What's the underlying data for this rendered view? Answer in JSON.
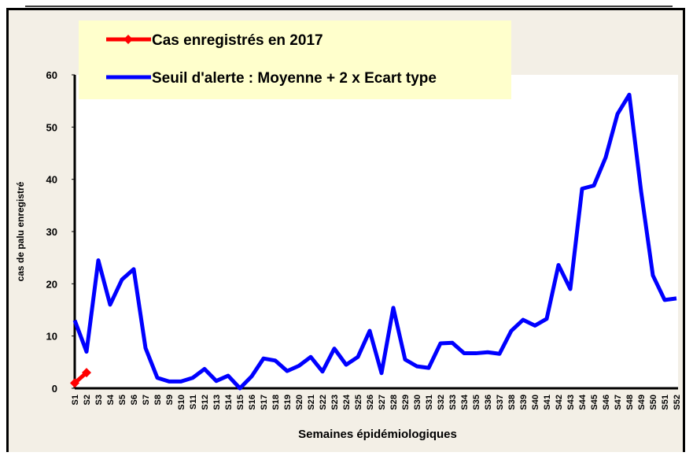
{
  "chart_data": {
    "type": "line",
    "x_label": "Semaines épidémiologiques",
    "y_label": "cas de palu enregistré",
    "categories": [
      "S1",
      "S2",
      "S3",
      "S4",
      "S5",
      "S6",
      "S7",
      "S8",
      "S9",
      "S10",
      "S11",
      "S12",
      "S13",
      "S14",
      "S15",
      "S16",
      "S17",
      "S18",
      "S19",
      "S20",
      "S21",
      "S22",
      "S23",
      "S24",
      "S25",
      "S26",
      "S27",
      "S28",
      "S29",
      "S30",
      "S31",
      "S32",
      "S33",
      "S34",
      "S35",
      "S36",
      "S37",
      "S38",
      "S39",
      "S40",
      "S41",
      "S42",
      "S43",
      "S44",
      "S45",
      "S46",
      "S47",
      "S48",
      "S49",
      "S50",
      "S51",
      "S52"
    ],
    "series": [
      {
        "name": "Cas enregistrés en 2017",
        "color": "#ff0000",
        "marker": "diamond",
        "values": [
          1,
          3,
          null,
          null,
          null,
          null,
          null,
          null,
          null,
          null,
          null,
          null,
          null,
          null,
          null,
          null,
          null,
          null,
          null,
          null,
          null,
          null,
          null,
          null,
          null,
          null,
          null,
          null,
          null,
          null,
          null,
          null,
          null,
          null,
          null,
          null,
          null,
          null,
          null,
          null,
          null,
          null,
          null,
          null,
          null,
          null,
          null,
          null,
          null,
          null,
          null,
          null
        ]
      },
      {
        "name": "Seuil d'alerte : Moyenne + 2 x Ecart type",
        "color": "#0000ff",
        "values": [
          13,
          7,
          24.5,
          16,
          20.8,
          22.8,
          7.7,
          2,
          1.3,
          1.3,
          2,
          3.7,
          1.4,
          2.4,
          0,
          2.3,
          5.7,
          5.3,
          3.3,
          4.3,
          6,
          3.2,
          7.6,
          4.5,
          6,
          11,
          2.9,
          15.4,
          5.5,
          4.2,
          3.9,
          8.6,
          8.7,
          6.7,
          6.7,
          6.9,
          6.6,
          11,
          13.1,
          12,
          13.3,
          23.6,
          19,
          38.2,
          38.8,
          44.2,
          52.5,
          56.2,
          37.7,
          21.6,
          16.9,
          17.2
        ]
      }
    ],
    "ylim": [
      0,
      60
    ],
    "yticks": [
      0,
      10,
      20,
      30,
      40,
      50,
      60
    ],
    "grid": false
  }
}
